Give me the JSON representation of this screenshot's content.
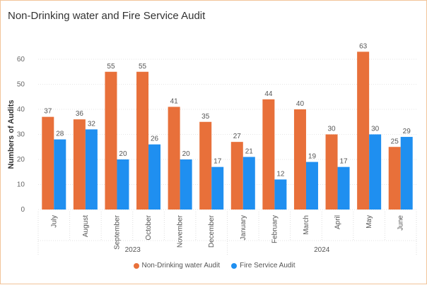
{
  "chart_data": {
    "type": "bar",
    "title": "Non-Drinking water and Fire Service Audit",
    "ylabel": "Numbers of Audits",
    "xlabel": "",
    "ylim": [
      0,
      65
    ],
    "yticks": [
      0,
      10,
      20,
      30,
      40,
      50,
      60
    ],
    "categories": [
      "July",
      "August",
      "September",
      "October",
      "November",
      "December",
      "January",
      "February",
      "March",
      "April",
      "May",
      "June"
    ],
    "groups": [
      {
        "label": "2023",
        "categories": [
          "July",
          "August",
          "September",
          "October",
          "November",
          "December"
        ]
      },
      {
        "label": "2024",
        "categories": [
          "January",
          "February",
          "March",
          "April",
          "May",
          "June"
        ]
      }
    ],
    "series": [
      {
        "name": "Non-Drinking water Audit",
        "color": "#E8703A",
        "values": [
          37,
          36,
          55,
          55,
          41,
          35,
          27,
          44,
          40,
          30,
          63,
          25
        ]
      },
      {
        "name": "Fire Service Audit",
        "color": "#1F8FF0",
        "values": [
          28,
          32,
          20,
          26,
          20,
          17,
          21,
          12,
          19,
          17,
          30,
          29
        ]
      }
    ],
    "grid": true,
    "legend": "bottom-center",
    "data_labels": true
  }
}
